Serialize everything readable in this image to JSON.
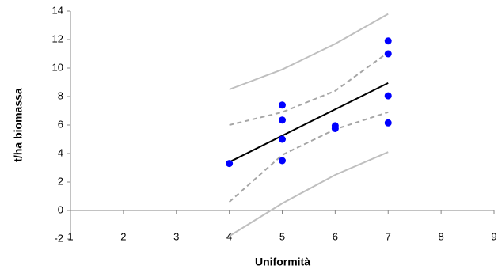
{
  "chart_data": {
    "type": "scatter",
    "x_label": "Uniformità",
    "y_label": "t/ha biomassa",
    "xlim": [
      1,
      9
    ],
    "ylim": [
      -2,
      14
    ],
    "xticks": [
      1,
      2,
      3,
      4,
      5,
      6,
      7,
      8,
      9
    ],
    "yticks": [
      -2,
      0,
      2,
      4,
      6,
      8,
      10,
      12,
      14
    ],
    "grid": false,
    "series": [
      {
        "kind": "points",
        "color": "#0000ff",
        "x": [
          4,
          5,
          5,
          5,
          5,
          6,
          6,
          7,
          7,
          7,
          7
        ],
        "values": [
          3.3,
          7.4,
          6.35,
          5.0,
          3.5,
          5.95,
          5.75,
          11.9,
          11.0,
          8.05,
          6.15
        ]
      },
      {
        "kind": "line",
        "color": "#000000",
        "x": [
          4,
          7
        ],
        "values": [
          3.4,
          8.95
        ]
      },
      {
        "kind": "dashed",
        "color": "#a6a6a6",
        "x": [
          4,
          5,
          6,
          7
        ],
        "values": [
          6.0,
          6.9,
          8.4,
          11.1
        ]
      },
      {
        "kind": "dashed",
        "color": "#a6a6a6",
        "x": [
          4,
          5,
          6,
          7
        ],
        "values": [
          0.6,
          3.9,
          5.7,
          6.9
        ]
      },
      {
        "kind": "line",
        "color": "#bfbfbf",
        "x": [
          4,
          5,
          6,
          7
        ],
        "values": [
          8.5,
          9.9,
          11.7,
          13.8
        ]
      },
      {
        "kind": "line",
        "color": "#bfbfbf",
        "x": [
          4,
          5,
          6,
          7
        ],
        "values": [
          -1.8,
          0.5,
          2.5,
          4.1
        ]
      }
    ]
  }
}
